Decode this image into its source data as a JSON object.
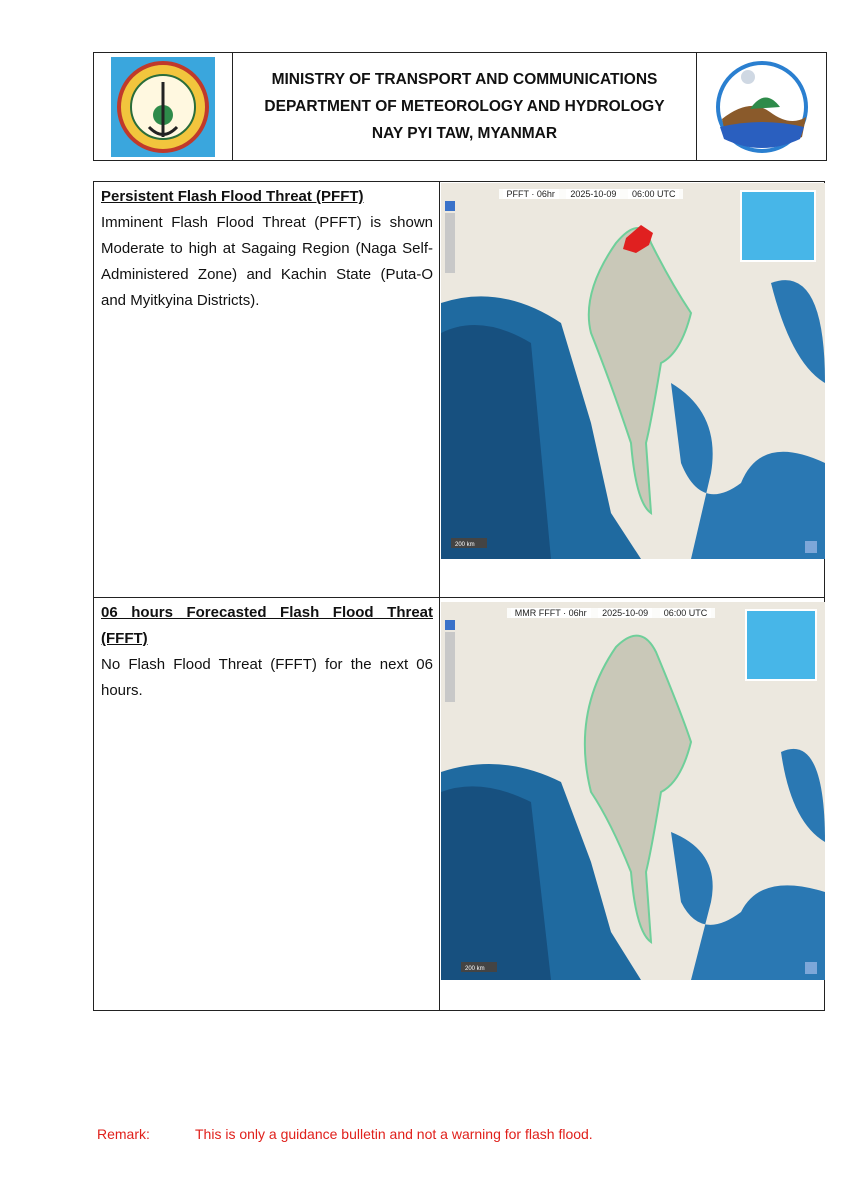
{
  "header": {
    "line1": "MINISTRY OF TRANSPORT AND COMMUNICATIONS",
    "line2": "DEPARTMENT OF METEOROLOGY AND HYDROLOGY",
    "line3": "NAY PYI TAW, MYANMAR"
  },
  "sections": [
    {
      "title": "Persistent Flash Flood Threat (PFFT)",
      "body": "Imminent Flash Flood Threat (PFFT) is shown Moderate to high at Sagaing Region (Naga Self-Administered Zone) and Kachin State (Puta-O and Myitkyina Districts).",
      "map": {
        "product": "PFFT · 06hr",
        "date": "2025-10-09",
        "time": "06:00 UTC",
        "threat_area": true,
        "scale": "200 km"
      }
    },
    {
      "title": "06 hours Forecasted Flash Flood Threat (FFFT)",
      "body": "No Flash Flood Threat (FFFT) for the next 06 hours.",
      "map": {
        "product": "MMR FFFT · 06hr",
        "date": "2025-10-09",
        "time": "06:00 UTC",
        "threat_area": false,
        "scale": "200 km"
      }
    }
  ],
  "remark": {
    "label": "Remark:",
    "text": "This is only a guidance bulletin and not a warning for flash flood."
  },
  "colors": {
    "sea": "#1f6aa0",
    "land": "#ece8df",
    "threat": "#e02020",
    "remark": "#e0201b"
  }
}
